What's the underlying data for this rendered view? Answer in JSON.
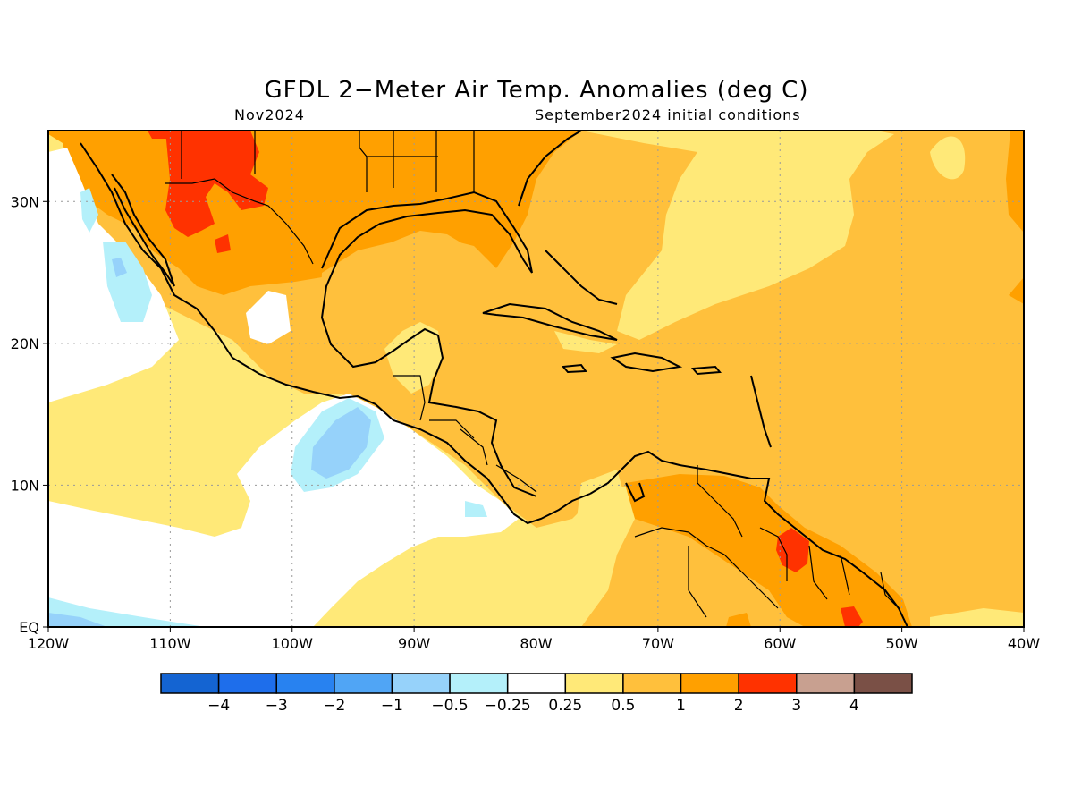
{
  "title": "GFDL 2−Meter Air Temp. Anomalies (deg C)",
  "valid_month": "Nov2024",
  "init_conditions": "September2024 initial conditions",
  "map": {
    "lon_ticks": [
      "120W",
      "110W",
      "100W",
      "90W",
      "80W",
      "70W",
      "60W",
      "50W",
      "40W"
    ],
    "lat_ticks": [
      "30N",
      "20N",
      "10N",
      "EQ"
    ],
    "grid": "dotted",
    "extent": {
      "lon": [
        -120,
        -40
      ],
      "lat": [
        0,
        35
      ]
    }
  },
  "legend": {
    "labels": [
      "−4",
      "−3",
      "−2",
      "−1",
      "−0.5",
      "−0.25",
      "0.25",
      "0.5",
      "1",
      "2",
      "3",
      "4"
    ],
    "colors": [
      "#1464d2",
      "#1e6eeb",
      "#2882f0",
      "#50a5f5",
      "#96d2fa",
      "#b4f0fa",
      "#ffffff",
      "#ffe978",
      "#ffc03c",
      "#ffa000",
      "#ff3200",
      "#c8a090",
      "#7a5046"
    ]
  },
  "colors": {
    "frame": "#000000",
    "coast": "#000000",
    "grid": "#9a9a9a"
  }
}
